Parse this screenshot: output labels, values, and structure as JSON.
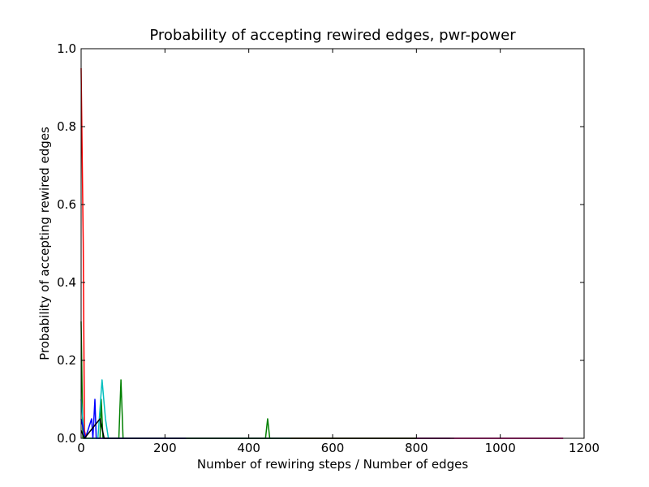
{
  "chart_data": {
    "type": "line",
    "title": "Probability of accepting rewired edges, pwr-power",
    "xlabel": "Number of rewiring steps / Number of edges",
    "ylabel": "Probability of accepting rewired edges",
    "xlim": [
      0,
      1200
    ],
    "ylim": [
      0,
      1.0
    ],
    "grid": false,
    "legend": "none",
    "x_ticks": [
      "0",
      "200",
      "400",
      "600",
      "800",
      "1000",
      "1200"
    ],
    "y_ticks": [
      "0.0",
      "0.2",
      "0.4",
      "0.6",
      "0.8",
      "1.0"
    ],
    "series": [
      {
        "color": "#ff0000",
        "points": [
          [
            0,
            0.95
          ],
          [
            5,
            0.5
          ],
          [
            8,
            0.02
          ],
          [
            12,
            0
          ],
          [
            300,
            0
          ],
          [
            600,
            0
          ],
          [
            900,
            0
          ],
          [
            1150,
            0
          ]
        ]
      },
      {
        "color": "#008000",
        "points": [
          [
            0,
            0.3
          ],
          [
            4,
            0
          ],
          [
            30,
            0
          ],
          [
            45,
            0
          ],
          [
            48,
            0.1
          ],
          [
            52,
            0
          ],
          [
            90,
            0
          ],
          [
            95,
            0.15
          ],
          [
            100,
            0
          ],
          [
            440,
            0
          ],
          [
            445,
            0.05
          ],
          [
            450,
            0
          ],
          [
            700,
            0
          ],
          [
            890,
            0
          ]
        ]
      },
      {
        "color": "#00bfbf",
        "points": [
          [
            0,
            0.1
          ],
          [
            8,
            0
          ],
          [
            40,
            0
          ],
          [
            50,
            0.15
          ],
          [
            58,
            0.05
          ],
          [
            65,
            0
          ],
          [
            300,
            0
          ],
          [
            500,
            0
          ]
        ]
      },
      {
        "color": "#0000ff",
        "points": [
          [
            0,
            0.05
          ],
          [
            10,
            0
          ],
          [
            25,
            0.05
          ],
          [
            28,
            0
          ],
          [
            33,
            0.1
          ],
          [
            36,
            0
          ],
          [
            100,
            0
          ],
          [
            250,
            0
          ]
        ]
      },
      {
        "color": "#000000",
        "points": [
          [
            0,
            0.02
          ],
          [
            8,
            0
          ],
          [
            45,
            0.05
          ],
          [
            55,
            0
          ],
          [
            90,
            0
          ],
          [
            200,
            0
          ],
          [
            400,
            0
          ],
          [
            600,
            0
          ],
          [
            880,
            0
          ]
        ]
      },
      {
        "color": "#bf00bf",
        "points": [
          [
            800,
            0
          ],
          [
            1000,
            0
          ],
          [
            1150,
            0
          ]
        ]
      }
    ]
  }
}
